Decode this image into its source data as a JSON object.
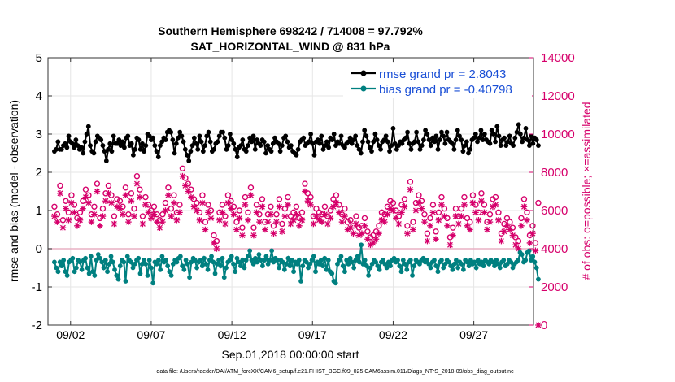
{
  "chart_data": {
    "type": "line",
    "title": "Southern Hemisphere 698242 / 714008 = 97.792%",
    "subtitle": "SAT_HORIZONTAL_WIND @ 831 hPa",
    "xlabel": "Sep.01,2018 00:00:00 start",
    "ylabel_left": "rmse and bias (model - observation)",
    "ylabel_right": "# of obs: o=possible; ×=assimilated",
    "xlim": [
      0.6,
      30.7
    ],
    "ylim_left": [
      -2,
      5
    ],
    "ylim_right": [
      0,
      14000
    ],
    "x_ticks": [
      2,
      7,
      12,
      17,
      22,
      27
    ],
    "x_tick_labels": [
      "09/02",
      "09/07",
      "09/12",
      "09/17",
      "09/22",
      "09/27"
    ],
    "y_ticks_left": [
      -2,
      -1,
      0,
      1,
      2,
      3,
      4,
      5
    ],
    "y_ticks_right": [
      0,
      2000,
      4000,
      6000,
      8000,
      10000,
      12000,
      14000
    ],
    "grid": true,
    "legend_position": "top-right",
    "footer": "data file: /Users/raeder/DAI/ATM_forcXX/CAM6_setup/f.e21.FHIST_BGC.f09_025.CAM6assim.011/Diags_NTrS_2018-09/obs_diag_output.nc",
    "series": [
      {
        "name": "rmse grand pr = 2.8043",
        "color": "#000000",
        "marker": "circle",
        "axis": "left",
        "values": [
          2.55,
          2.6,
          2.8,
          2.6,
          2.6,
          2.7,
          2.75,
          2.65,
          2.95,
          2.8,
          2.75,
          2.65,
          2.85,
          2.7,
          2.6,
          2.65,
          2.5,
          2.8,
          3.0,
          3.2,
          2.7,
          2.55,
          2.5,
          2.8,
          2.95,
          2.9,
          2.85,
          2.7,
          2.55,
          2.3,
          2.6,
          2.75,
          2.55,
          2.95,
          2.75,
          2.75,
          2.85,
          2.7,
          2.8,
          2.65,
          2.9,
          2.95,
          2.7,
          2.75,
          2.45,
          2.6,
          2.9,
          2.85,
          2.6,
          2.75,
          2.55,
          2.7,
          3.0,
          2.95,
          2.85,
          2.9,
          2.7,
          2.55,
          2.4,
          2.7,
          2.8,
          2.9,
          2.85,
          3.05,
          3.1,
          3.05,
          2.85,
          2.5,
          2.75,
          2.9,
          3.05,
          2.95,
          2.8,
          2.6,
          2.45,
          2.3,
          2.55,
          2.7,
          2.9,
          2.75,
          2.6,
          2.95,
          2.8,
          2.55,
          2.7,
          2.95,
          3.05,
          2.8,
          2.55,
          2.6,
          2.75,
          2.8,
          2.95,
          3.05,
          3.05,
          2.9,
          2.6,
          2.7,
          3.0,
          2.85,
          2.75,
          2.6,
          2.4,
          2.65,
          2.7,
          2.85,
          2.6,
          2.55,
          2.7,
          2.9,
          2.8,
          2.95,
          2.6,
          2.85,
          2.75,
          2.7,
          2.85,
          2.8,
          2.5,
          2.7,
          2.6,
          2.55,
          2.75,
          2.9,
          2.8,
          2.75,
          2.55,
          2.7,
          2.9,
          2.95,
          2.8,
          2.65,
          2.7,
          2.55,
          2.5,
          2.45,
          2.6,
          2.8,
          2.85,
          2.9,
          2.7,
          2.75,
          2.8,
          3.0,
          2.75,
          2.45,
          2.8,
          2.85,
          2.75,
          2.95,
          2.6,
          2.7,
          2.8,
          2.65,
          2.9,
          2.85,
          3.0,
          2.7,
          2.8,
          2.75,
          2.95,
          2.7,
          2.65,
          2.75,
          2.8,
          2.9,
          2.75,
          2.85,
          2.95,
          2.7,
          2.6,
          2.5,
          2.8,
          3.1,
          2.95,
          2.8,
          2.65,
          2.55,
          2.8,
          3.0,
          2.85,
          2.7,
          2.6,
          2.8,
          2.85,
          2.95,
          2.8,
          2.55,
          2.7,
          3.15,
          2.75,
          2.6,
          2.7,
          2.8,
          2.75,
          2.85,
          2.9,
          3.05,
          2.75,
          2.6,
          2.75,
          2.8,
          3.05,
          2.8,
          2.6,
          2.7,
          2.85,
          3.1,
          3.0,
          2.85,
          2.7,
          2.9,
          2.8,
          2.95,
          2.6,
          2.85,
          3.05,
          2.95,
          2.75,
          3.05,
          2.85,
          2.8,
          2.75,
          2.6,
          2.85,
          3.1,
          2.95,
          2.85,
          2.55,
          2.7,
          2.8,
          2.5,
          2.6,
          2.85,
          2.9,
          3.0,
          2.8,
          2.9,
          3.1,
          2.85,
          3.0,
          2.85,
          2.8,
          2.75,
          3.1,
          3.0,
          2.8,
          3.2,
          2.95,
          2.7,
          2.85,
          2.9,
          2.7,
          2.8,
          2.95,
          2.75,
          2.7,
          2.9,
          3.05,
          3.25,
          3.0,
          2.8,
          2.9,
          3.15,
          2.85,
          2.7,
          2.95,
          2.75,
          2.9,
          2.85,
          2.7
        ]
      },
      {
        "name": "bias grand pr = -0.40798",
        "color": "#008080",
        "marker": "circle",
        "axis": "left",
        "values": [
          -0.35,
          -0.5,
          -0.6,
          -0.35,
          -0.45,
          -0.3,
          -0.6,
          -0.7,
          -0.35,
          -0.3,
          -0.25,
          -0.6,
          -0.5,
          -0.3,
          -0.35,
          -0.55,
          -0.3,
          -0.25,
          -0.5,
          -0.65,
          -0.2,
          -0.6,
          -0.7,
          -0.3,
          -0.15,
          -0.25,
          -0.35,
          -0.5,
          -0.3,
          -0.6,
          -0.4,
          -0.2,
          -0.35,
          -0.55,
          -0.7,
          -0.8,
          -0.45,
          -0.3,
          -0.35,
          -0.85,
          -0.2,
          -0.3,
          -0.35,
          -0.5,
          -0.4,
          -0.3,
          -0.25,
          -0.65,
          -0.4,
          -0.3,
          -0.4,
          -0.7,
          -0.3,
          -0.5,
          -0.9,
          -0.35,
          -0.4,
          -0.3,
          -0.55,
          -0.2,
          -0.35,
          -0.3,
          -0.45,
          -0.6,
          -0.7,
          -0.4,
          -0.3,
          -0.35,
          -0.25,
          -0.2,
          -0.45,
          -0.55,
          -0.3,
          -0.4,
          -0.75,
          -0.35,
          -0.25,
          -0.3,
          -0.5,
          -0.35,
          -0.3,
          -0.45,
          -0.25,
          -0.4,
          -0.55,
          -0.3,
          -0.2,
          -0.35,
          -0.65,
          -0.4,
          -0.3,
          -0.45,
          -0.25,
          -0.75,
          -0.5,
          -0.35,
          -0.3,
          -0.2,
          -0.4,
          -0.6,
          -0.25,
          -0.35,
          -0.45,
          -0.3,
          -0.5,
          -0.3,
          -0.2,
          -0.05,
          -0.3,
          -0.4,
          -0.25,
          -0.35,
          -0.15,
          -0.3,
          -0.45,
          -0.3,
          -0.2,
          -0.4,
          -0.3,
          -0.05,
          -0.35,
          -0.25,
          -0.3,
          -0.5,
          -0.3,
          -0.35,
          -0.55,
          -0.4,
          -0.25,
          -0.45,
          -0.3,
          -0.6,
          -0.35,
          -0.4,
          -0.3,
          -0.85,
          -0.45,
          -0.3,
          -0.35,
          -0.5,
          -0.4,
          -0.3,
          -0.2,
          -0.6,
          -0.35,
          -0.4,
          -0.3,
          -0.45,
          -0.25,
          -0.55,
          -0.3,
          -0.6,
          -0.65,
          -0.85,
          -0.9,
          -0.4,
          -0.3,
          -0.2,
          -0.45,
          -0.6,
          -0.3,
          -0.4,
          -0.25,
          -0.35,
          -0.5,
          -0.3,
          -0.2,
          -0.35,
          0.1,
          -0.4,
          -0.3,
          -0.45,
          -0.7,
          -0.5,
          -0.4,
          -0.3,
          -0.35,
          -0.45,
          -0.55,
          -0.35,
          -0.3,
          -0.4,
          -0.5,
          -0.35,
          -0.45,
          -0.3,
          -0.25,
          -0.35,
          -0.3,
          -0.45,
          -0.6,
          -0.3,
          -0.4,
          -0.55,
          -0.35,
          -0.3,
          -0.7,
          -0.45,
          -0.3,
          -0.35,
          -0.4,
          -0.3,
          -0.25,
          -0.35,
          -0.3,
          -0.4,
          -0.5,
          -0.35,
          -0.3,
          -0.45,
          -0.6,
          -0.35,
          -0.3,
          -0.5,
          -0.4,
          -0.3,
          -0.35,
          -0.45,
          -0.55,
          -0.4,
          -0.3,
          -0.5,
          -0.35,
          -0.4,
          -0.55,
          -0.3,
          -0.35,
          -0.45,
          -0.3,
          -0.4,
          -0.35,
          -0.5,
          -0.3,
          -0.4,
          -0.35,
          -0.45,
          -0.3,
          -0.35,
          -0.4,
          -0.3,
          -0.35,
          -0.45,
          -0.3,
          -0.4,
          -0.5,
          -0.35,
          -0.3,
          -0.45,
          -0.4,
          -0.3,
          -0.35,
          -0.5,
          -0.4,
          -0.35,
          -0.3,
          -0.1,
          -0.15,
          -0.35,
          -0.3,
          -0.1,
          -0.05,
          -0.3,
          -0.2,
          -0.35,
          -0.5,
          -0.8
        ]
      },
      {
        "name": "possible",
        "color": "#d6006b",
        "marker": "o",
        "axis": "right",
        "values": [
          6200,
          5800,
          7300,
          5500,
          6500,
          5900,
          6800,
          6300,
          5600,
          5900,
          6500,
          7100,
          6800,
          5800,
          6200,
          7400,
          5600,
          6100,
          6900,
          7300,
          6800,
          5700,
          6600,
          6500,
          6200,
          7200,
          5800,
          6900,
          6100,
          7800,
          7100,
          5700,
          6700,
          6300,
          6000,
          6200,
          5800,
          5500,
          5800,
          6400,
          7200,
          6100,
          6800,
          5900,
          6300,
          8200,
          7700,
          7400,
          7100,
          6600,
          6400,
          5900,
          6800,
          5400,
          6300,
          6000,
          4700,
          4400,
          5900,
          6300,
          5700,
          6800,
          6500,
          6200,
          5400,
          6000,
          5100,
          6700,
          5900,
          7200,
          5100,
          6300,
          5800,
          6600,
          5400,
          5800,
          6200,
          5200,
          5800,
          6600,
          5300,
          6100,
          6700,
          5700,
          5900,
          6200,
          5600,
          5900,
          7400,
          6900,
          6700,
          5700,
          6100,
          5900,
          5800,
          6200,
          5700,
          6000,
          6600,
          6800,
          6300,
          5800,
          6100,
          5400,
          5500,
          5200,
          5700,
          5100,
          5200,
          5600,
          4900,
          4600,
          4700,
          4900,
          5200,
          5900,
          5800,
          6200,
          6500,
          6400,
          6000,
          5700,
          6300,
          6600,
          5200,
          7500,
          5400,
          6400,
          6800,
          6500,
          5800,
          4800,
          5600,
          6300,
          4900,
          5900,
          6700,
          6100,
          5600,
          4600,
          5100,
          6100,
          5700,
          6100,
          6700,
          5600,
          5400,
          6800,
          6300,
          5900,
          6900,
          6300,
          5400,
          5800,
          6600,
          6700,
          5900,
          4800,
          5300,
          5600,
          5400,
          5100,
          4600,
          4400,
          5600,
          6600,
          5900,
          4700,
          5200,
          4300,
          6400
        ]
      },
      {
        "name": "assimilated",
        "color": "#d6006b",
        "marker": "x",
        "axis": "right",
        "values": [
          5700,
          5400,
          6900,
          5100,
          6100,
          5500,
          6400,
          5900,
          5200,
          5500,
          6100,
          6700,
          6400,
          5400,
          5800,
          7000,
          5200,
          5700,
          6500,
          6900,
          6400,
          5300,
          6200,
          6100,
          5800,
          6800,
          5400,
          6500,
          5700,
          7400,
          6700,
          5300,
          6300,
          5900,
          5600,
          5800,
          5400,
          5100,
          5400,
          6000,
          6800,
          5700,
          6400,
          5500,
          5900,
          7800,
          7300,
          7000,
          6700,
          6200,
          6000,
          5500,
          6400,
          5000,
          5900,
          5600,
          4300,
          4000,
          5500,
          5900,
          5300,
          6400,
          6100,
          5800,
          5000,
          5600,
          4700,
          6300,
          5500,
          6800,
          4700,
          5900,
          5400,
          6200,
          5000,
          5400,
          5800,
          4800,
          5400,
          6200,
          4900,
          5700,
          6300,
          5300,
          5500,
          5800,
          5200,
          5500,
          7000,
          6500,
          6300,
          5300,
          5700,
          5500,
          5400,
          5800,
          5300,
          5600,
          6200,
          6400,
          5900,
          5400,
          5700,
          5000,
          5100,
          4800,
          5300,
          4700,
          4800,
          5200,
          4500,
          4200,
          4300,
          4500,
          4800,
          5500,
          5400,
          5800,
          6100,
          6000,
          5600,
          5300,
          5900,
          6200,
          4800,
          7100,
          5000,
          6000,
          6400,
          6100,
          5400,
          4400,
          5200,
          5900,
          4500,
          5500,
          6300,
          5700,
          5200,
          4200,
          4700,
          5700,
          5300,
          5700,
          6300,
          5200,
          5000,
          6400,
          5900,
          5500,
          6500,
          5900,
          5000,
          5400,
          6200,
          6300,
          5500,
          4400,
          4900,
          5200,
          5000,
          4700,
          4200,
          4000,
          5200,
          6200,
          5500,
          4300,
          4800,
          3900,
          0
        ]
      }
    ]
  }
}
